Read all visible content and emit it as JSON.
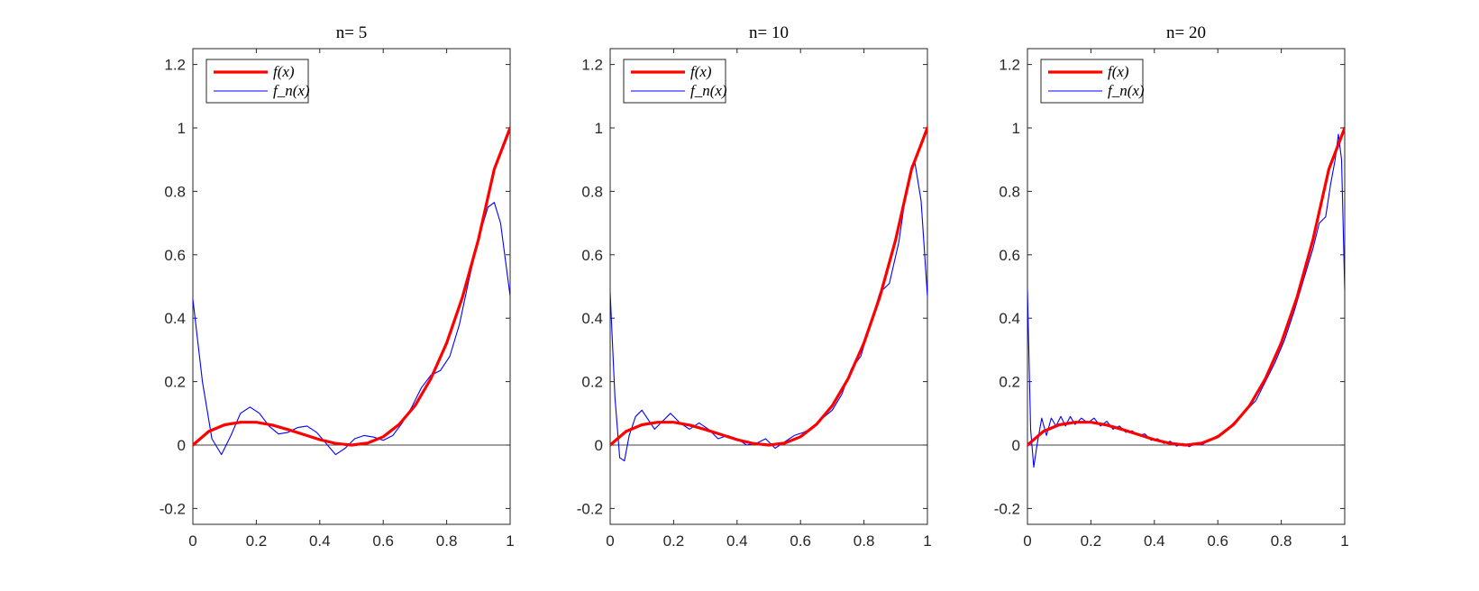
{
  "figure": {
    "panels": [
      {
        "title": "n= 5"
      },
      {
        "title": "n= 10"
      },
      {
        "title": "n= 20"
      }
    ]
  },
  "chart_data": [
    {
      "type": "line",
      "title": "n= 5",
      "xlabel": "",
      "ylabel": "",
      "xlim": [
        0,
        1
      ],
      "ylim": [
        -0.25,
        1.25
      ],
      "xticks": [
        "0",
        "0.2",
        "0.4",
        "0.6",
        "0.8",
        "1"
      ],
      "yticks": [
        "-0.2",
        "0",
        "0.2",
        "0.4",
        "0.6",
        "0.8",
        "1",
        "1.2"
      ],
      "grid": false,
      "legend_position": "top-left",
      "series": [
        {
          "name": "f(x)",
          "color": "#ff0000",
          "x": [
            0,
            0.05,
            0.1,
            0.15,
            0.2,
            0.25,
            0.3,
            0.35,
            0.4,
            0.45,
            0.5,
            0.55,
            0.6,
            0.65,
            0.7,
            0.75,
            0.8,
            0.85,
            0.9,
            0.95,
            1.0
          ],
          "y": [
            0,
            0.043,
            0.064,
            0.072,
            0.072,
            0.063,
            0.049,
            0.033,
            0.017,
            0.005,
            0,
            0.006,
            0.026,
            0.065,
            0.124,
            0.209,
            0.322,
            0.467,
            0.648,
            0.87,
            1.0
          ]
        },
        {
          "name": "f_n(x)",
          "color": "#0000ff",
          "x": [
            0,
            0.03,
            0.06,
            0.09,
            0.12,
            0.15,
            0.18,
            0.21,
            0.24,
            0.27,
            0.3,
            0.33,
            0.36,
            0.39,
            0.42,
            0.45,
            0.48,
            0.51,
            0.54,
            0.57,
            0.6,
            0.63,
            0.66,
            0.69,
            0.72,
            0.75,
            0.78,
            0.81,
            0.84,
            0.87,
            0.9,
            0.93,
            0.95,
            0.97,
            1.0
          ],
          "y": [
            0.46,
            0.2,
            0.02,
            -0.03,
            0.03,
            0.1,
            0.12,
            0.1,
            0.06,
            0.035,
            0.04,
            0.055,
            0.06,
            0.04,
            0.005,
            -0.03,
            -0.01,
            0.02,
            0.03,
            0.025,
            0.015,
            0.03,
            0.07,
            0.12,
            0.18,
            0.22,
            0.235,
            0.28,
            0.38,
            0.52,
            0.65,
            0.75,
            0.765,
            0.7,
            0.47
          ]
        }
      ]
    },
    {
      "type": "line",
      "title": "n= 10",
      "xlabel": "",
      "ylabel": "",
      "xlim": [
        0,
        1
      ],
      "ylim": [
        -0.25,
        1.25
      ],
      "xticks": [
        "0",
        "0.2",
        "0.4",
        "0.6",
        "0.8",
        "1"
      ],
      "yticks": [
        "-0.2",
        "0",
        "0.2",
        "0.4",
        "0.6",
        "0.8",
        "1",
        "1.2"
      ],
      "grid": false,
      "legend_position": "top-left",
      "series": [
        {
          "name": "f(x)",
          "color": "#ff0000",
          "x": [
            0,
            0.05,
            0.1,
            0.15,
            0.2,
            0.25,
            0.3,
            0.35,
            0.4,
            0.45,
            0.5,
            0.55,
            0.6,
            0.65,
            0.7,
            0.75,
            0.8,
            0.85,
            0.9,
            0.95,
            1.0
          ],
          "y": [
            0,
            0.043,
            0.064,
            0.072,
            0.072,
            0.063,
            0.049,
            0.033,
            0.017,
            0.005,
            0,
            0.006,
            0.026,
            0.065,
            0.124,
            0.209,
            0.322,
            0.467,
            0.648,
            0.87,
            1.0
          ]
        },
        {
          "name": "f_n(x)",
          "color": "#0000ff",
          "x": [
            0,
            0.015,
            0.03,
            0.045,
            0.06,
            0.08,
            0.1,
            0.12,
            0.14,
            0.16,
            0.19,
            0.22,
            0.25,
            0.28,
            0.31,
            0.34,
            0.37,
            0.4,
            0.43,
            0.46,
            0.49,
            0.52,
            0.55,
            0.58,
            0.61,
            0.64,
            0.67,
            0.7,
            0.73,
            0.76,
            0.79,
            0.82,
            0.85,
            0.88,
            0.91,
            0.93,
            0.95,
            0.96,
            0.98,
            1.0
          ],
          "y": [
            0.48,
            0.15,
            -0.04,
            -0.05,
            0.03,
            0.09,
            0.11,
            0.08,
            0.05,
            0.07,
            0.1,
            0.07,
            0.05,
            0.07,
            0.05,
            0.02,
            0.03,
            0.02,
            0.0,
            0.005,
            0.02,
            -0.01,
            0.01,
            0.03,
            0.04,
            0.055,
            0.085,
            0.11,
            0.16,
            0.24,
            0.28,
            0.38,
            0.48,
            0.51,
            0.64,
            0.78,
            0.88,
            0.895,
            0.77,
            0.47
          ]
        }
      ]
    },
    {
      "type": "line",
      "title": "n= 20",
      "xlabel": "",
      "ylabel": "",
      "xlim": [
        0,
        1
      ],
      "ylim": [
        -0.25,
        1.25
      ],
      "xticks": [
        "0",
        "0.2",
        "0.4",
        "0.6",
        "0.8",
        "1"
      ],
      "yticks": [
        "-0.2",
        "0",
        "0.2",
        "0.4",
        "0.6",
        "0.8",
        "1",
        "1.2"
      ],
      "grid": false,
      "legend_position": "top-left",
      "series": [
        {
          "name": "f(x)",
          "color": "#ff0000",
          "x": [
            0,
            0.05,
            0.1,
            0.15,
            0.2,
            0.25,
            0.3,
            0.35,
            0.4,
            0.45,
            0.5,
            0.55,
            0.6,
            0.65,
            0.7,
            0.75,
            0.8,
            0.85,
            0.9,
            0.95,
            1.0
          ],
          "y": [
            0,
            0.043,
            0.064,
            0.072,
            0.072,
            0.063,
            0.049,
            0.033,
            0.017,
            0.005,
            0,
            0.006,
            0.026,
            0.065,
            0.124,
            0.209,
            0.322,
            0.467,
            0.648,
            0.87,
            1.0
          ]
        },
        {
          "name": "f_n(x)",
          "color": "#0000ff",
          "x": [
            0,
            0.01,
            0.02,
            0.03,
            0.045,
            0.06,
            0.075,
            0.09,
            0.105,
            0.12,
            0.135,
            0.15,
            0.17,
            0.19,
            0.21,
            0.23,
            0.25,
            0.27,
            0.29,
            0.31,
            0.33,
            0.35,
            0.37,
            0.39,
            0.41,
            0.43,
            0.45,
            0.47,
            0.49,
            0.51,
            0.53,
            0.55,
            0.57,
            0.6,
            0.63,
            0.66,
            0.69,
            0.72,
            0.75,
            0.78,
            0.81,
            0.84,
            0.87,
            0.9,
            0.92,
            0.94,
            0.955,
            0.97,
            0.98,
            0.99,
            1.0
          ],
          "y": [
            0.49,
            0.05,
            -0.07,
            0.0,
            0.085,
            0.03,
            0.085,
            0.06,
            0.09,
            0.06,
            0.09,
            0.065,
            0.085,
            0.07,
            0.085,
            0.06,
            0.075,
            0.05,
            0.06,
            0.04,
            0.045,
            0.03,
            0.035,
            0.015,
            0.02,
            0.005,
            0.012,
            -0.003,
            0.005,
            -0.005,
            0.005,
            0.0,
            0.015,
            0.03,
            0.05,
            0.08,
            0.11,
            0.14,
            0.2,
            0.26,
            0.33,
            0.42,
            0.52,
            0.62,
            0.7,
            0.72,
            0.82,
            0.9,
            0.98,
            0.9,
            0.49
          ]
        }
      ]
    }
  ]
}
